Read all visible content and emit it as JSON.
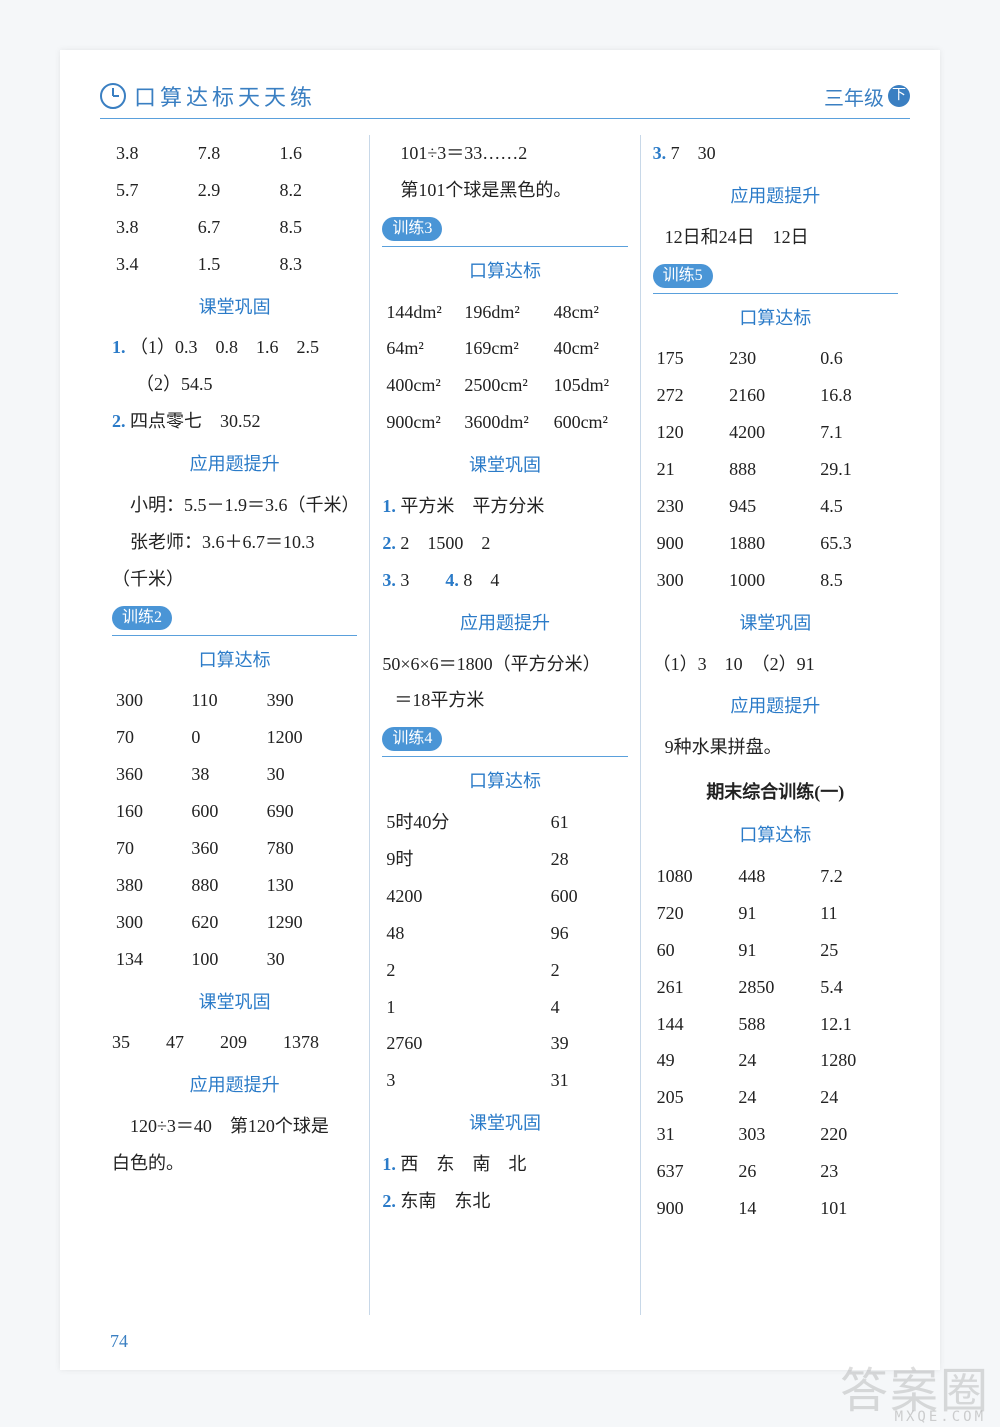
{
  "header": {
    "title_left": "口算达标天天练",
    "title_right": "三年级",
    "badge": "下"
  },
  "page_number": "74",
  "watermark": "答案圈",
  "watermark_sub": "MXQE.COM",
  "col1": {
    "grid1": [
      [
        "3.8",
        "7.8",
        "1.6"
      ],
      [
        "5.7",
        "2.9",
        "8.2"
      ],
      [
        "3.8",
        "6.7",
        "8.5"
      ],
      [
        "3.4",
        "1.5",
        "8.3"
      ]
    ],
    "sub1": "课堂巩固",
    "line1a": "（1）0.3　0.8　1.6　2.5",
    "line1b": "（2）54.5",
    "line2": "四点零七　30.52",
    "sub2": "应用题提升",
    "line3": "小明：5.5－1.9＝3.6（千米）",
    "line4": "张老师：3.6＋6.7＝10.3",
    "line4b": "（千米）",
    "pill": "训练2",
    "sub3": "口算达标",
    "grid2": [
      [
        "300",
        "110",
        "390"
      ],
      [
        "70",
        "0",
        "1200"
      ],
      [
        "360",
        "38",
        "30"
      ],
      [
        "160",
        "600",
        "690"
      ],
      [
        "70",
        "360",
        "780"
      ],
      [
        "380",
        "880",
        "130"
      ],
      [
        "300",
        "620",
        "1290"
      ],
      [
        "134",
        "100",
        "30"
      ]
    ],
    "sub4": "课堂巩固",
    "line5": "35　　47　　209　　1378",
    "sub5": "应用题提升",
    "line6": "120÷3＝40　第120个球是",
    "line6b": "白色的。"
  },
  "col2": {
    "line1": "101÷3＝33……2",
    "line2": "第101个球是黑色的。",
    "pill1": "训练3",
    "sub1": "口算达标",
    "grid1": [
      [
        "144dm²",
        "196dm²",
        "48cm²"
      ],
      [
        "64m²",
        "169cm²",
        "40cm²"
      ],
      [
        "400cm²",
        "2500cm²",
        "105dm²"
      ],
      [
        "900cm²",
        "3600dm²",
        "600cm²"
      ]
    ],
    "sub2": "课堂巩固",
    "line3": "平方米　平方分米",
    "line4": "2　1500　2",
    "line5": "3",
    "line5b": "8　4",
    "sub3": "应用题提升",
    "line6": "50×6×6＝1800（平方分米）",
    "line7": "＝18平方米",
    "pill2": "训练4",
    "sub4": "口算达标",
    "grid2": [
      [
        "5时40分",
        "61"
      ],
      [
        "9时",
        "28"
      ],
      [
        "4200",
        "600"
      ],
      [
        "48",
        "96"
      ],
      [
        "2",
        "2"
      ],
      [
        "1",
        "4"
      ],
      [
        "2760",
        "39"
      ],
      [
        "3",
        "31"
      ]
    ],
    "sub5": "课堂巩固",
    "line8": "西　东　南　北",
    "line9": "东南　东北"
  },
  "col3": {
    "line1": "7　30",
    "sub1": "应用题提升",
    "line2": "12日和24日　12日",
    "pill1": "训练5",
    "sub2": "口算达标",
    "grid1": [
      [
        "175",
        "230",
        "0.6"
      ],
      [
        "272",
        "2160",
        "16.8"
      ],
      [
        "120",
        "4200",
        "7.1"
      ],
      [
        "21",
        "888",
        "29.1"
      ],
      [
        "230",
        "945",
        "4.5"
      ],
      [
        "900",
        "1880",
        "65.3"
      ],
      [
        "300",
        "1000",
        "8.5"
      ]
    ],
    "sub3": "课堂巩固",
    "line3": "（1）3　10　（2）91",
    "sub4": "应用题提升",
    "line4": "9种水果拼盘。",
    "title": "期末综合训练(一)",
    "sub5": "口算达标",
    "grid2": [
      [
        "1080",
        "448",
        "7.2"
      ],
      [
        "720",
        "91",
        "11"
      ],
      [
        "60",
        "91",
        "25"
      ],
      [
        "261",
        "2850",
        "5.4"
      ],
      [
        "144",
        "588",
        "12.1"
      ],
      [
        "49",
        "24",
        "1280"
      ],
      [
        "205",
        "24",
        "24"
      ],
      [
        "31",
        "303",
        "220"
      ],
      [
        "637",
        "26",
        "23"
      ],
      [
        "900",
        "14",
        "101"
      ]
    ]
  }
}
